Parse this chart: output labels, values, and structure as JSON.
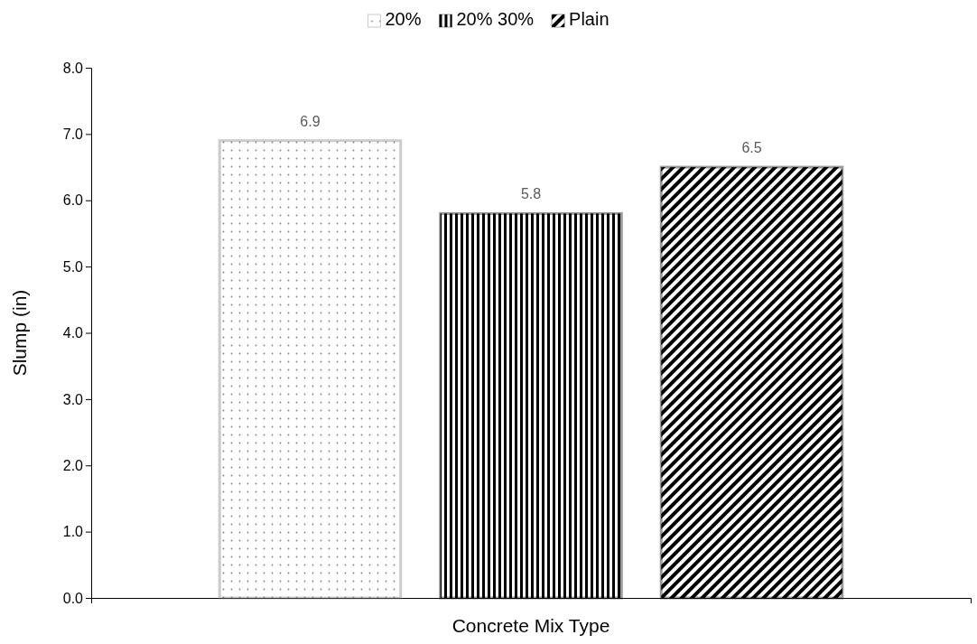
{
  "chart_data": {
    "type": "bar",
    "categories": [
      null
    ],
    "xlabel": "Concrete Mix Type",
    "ylabel": "Slump (in)",
    "series": [
      {
        "name": "20%",
        "color": "#808080",
        "values": [
          6.9
        ]
      },
      {
        "name": "20% 30%",
        "color": "#000000",
        "values": [
          5.8
        ]
      },
      {
        "name": "Plain",
        "color": "#000000",
        "values": [
          6.5
        ]
      }
    ],
    "ylim": [
      0,
      8
    ],
    "yticks": [
      {
        "value": 0,
        "label": "0.0"
      },
      {
        "value": 1,
        "label": "1.0"
      },
      {
        "value": 2,
        "label": "2.0"
      },
      {
        "value": 3,
        "label": "3.0"
      },
      {
        "value": 4,
        "label": "4.0"
      },
      {
        "value": 5,
        "label": "5.0"
      },
      {
        "value": 6,
        "label": "6.0"
      },
      {
        "value": 7,
        "label": "7.0"
      },
      {
        "value": 8,
        "label": "8.0"
      }
    ],
    "data_labels": true,
    "legend": "top",
    "grid": false
  }
}
